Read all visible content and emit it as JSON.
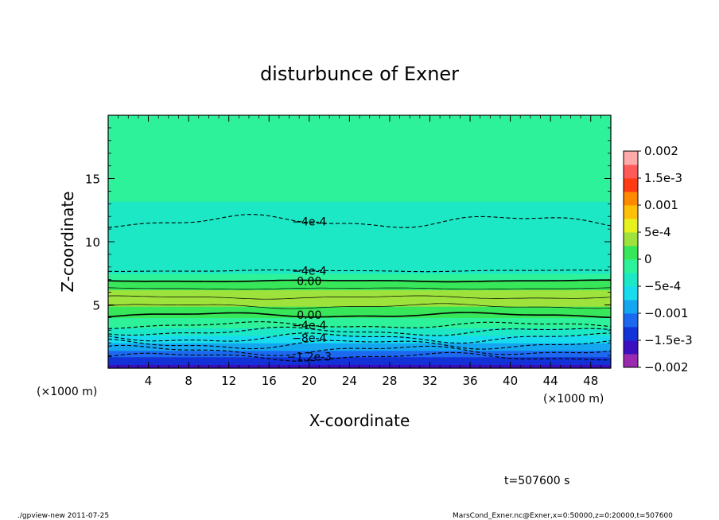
{
  "chart_data": {
    "type": "heatmap",
    "title": "disturbunce of Exner",
    "xlabel": "X-coordinate",
    "ylabel": "Z-coordinate",
    "x_unit": "(×1000 m)",
    "y_unit": "(×1000 m)",
    "xlim": [
      0,
      50
    ],
    "ylim": [
      0,
      20
    ],
    "x_ticks": [
      4,
      8,
      12,
      16,
      20,
      24,
      28,
      32,
      36,
      40,
      44,
      48
    ],
    "y_ticks": [
      5,
      10,
      15
    ],
    "colorbar": {
      "min": -0.002,
      "max": 0.002,
      "labels": [
        "0.002",
        "1.5e-3",
        "0.001",
        "5e-4",
        "0",
        "−5e-4",
        "−0.001",
        "−1.5e-3",
        "−0.002"
      ],
      "colors": [
        "#9a2bb0",
        "#3b0fbf",
        "#1233d8",
        "#1c69f0",
        "#14a6f0",
        "#18dcee",
        "#1de8c6",
        "#2ef29a",
        "#38e65a",
        "#9ee23d",
        "#e6f11d",
        "#ffc00a",
        "#ff8a00",
        "#ff3b13",
        "#ff5a5a",
        "#ffaaaa"
      ]
    },
    "vertical_profile": [
      {
        "z": 0.0,
        "value": -0.0016
      },
      {
        "z": 0.6,
        "value": -0.0014
      },
      {
        "z": 1.2,
        "value": -0.0011
      },
      {
        "z": 1.8,
        "value": -0.00085
      },
      {
        "z": 2.4,
        "value": -0.0006
      },
      {
        "z": 3.0,
        "value": -0.00035
      },
      {
        "z": 3.6,
        "value": -0.0001
      },
      {
        "z": 4.2,
        "value": 5e-05
      },
      {
        "z": 5.0,
        "value": 0.00028
      },
      {
        "z": 5.6,
        "value": 0.00035
      },
      {
        "z": 6.4,
        "value": 0.00022
      },
      {
        "z": 7.0,
        "value": -2e-05
      },
      {
        "z": 7.8,
        "value": -0.00042
      },
      {
        "z": 9.0,
        "value": -0.0005
      },
      {
        "z": 10.8,
        "value": -0.00045
      },
      {
        "z": 12.0,
        "value": -0.00036
      },
      {
        "z": 14.0,
        "value": -0.00018
      },
      {
        "z": 16.0,
        "value": -8e-05
      },
      {
        "z": 18.0,
        "value": -2e-05
      },
      {
        "z": 20.0,
        "value": 0.0
      }
    ],
    "contours": [
      {
        "label": "−1.2e-3",
        "z": 0.9,
        "style": "dashed",
        "amp": 0.25
      },
      {
        "label": "",
        "z": 1.4,
        "style": "dashed",
        "amp": 0.3
      },
      {
        "label": "",
        "z": 1.9,
        "style": "dashed",
        "amp": 0.3
      },
      {
        "label": "−8e-4",
        "z": 2.4,
        "style": "dashed",
        "amp": 0.3
      },
      {
        "label": "",
        "z": 2.9,
        "style": "dashed",
        "amp": 0.25
      },
      {
        "label": "−4e-4",
        "z": 3.4,
        "style": "dashed",
        "amp": 0.2
      },
      {
        "label": "0.00",
        "z": 4.2,
        "style": "solid",
        "amp": 0.15
      },
      {
        "label": "",
        "z": 4.9,
        "style": "thin",
        "amp": 0.15
      },
      {
        "label": "",
        "z": 5.6,
        "style": "thin",
        "amp": 0.1
      },
      {
        "label": "",
        "z": 6.3,
        "style": "thin",
        "amp": 0.05
      },
      {
        "label": "0.00",
        "z": 6.9,
        "style": "solid",
        "amp": 0.05
      },
      {
        "label": "−4e-4",
        "z": 7.7,
        "style": "dashed",
        "amp": 0.05
      },
      {
        "label": "−4e-4",
        "z": 11.6,
        "style": "dashed",
        "amp": 0.4
      }
    ],
    "time_label": "t=507600 s",
    "footer_left": "./gpview-new   2011-07-25",
    "footer_right": "MarsCond_Exner.nc@Exner,x=0:50000,z=0:20000,t=507600"
  }
}
